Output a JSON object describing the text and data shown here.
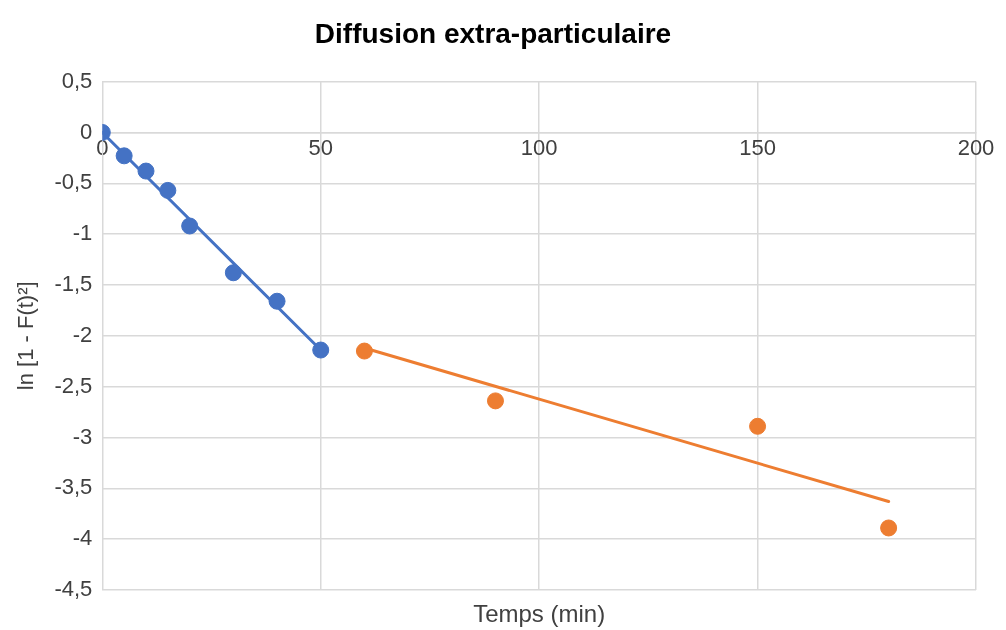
{
  "chart_data": {
    "type": "scatter",
    "title": "Diffusion extra-particulaire",
    "xlabel": "Temps (min)",
    "ylabel": "ln [1 - F(t)²]",
    "series": [
      {
        "type": "scatter",
        "color": "#4472c4",
        "x": [
          0,
          5,
          10,
          15,
          20,
          30,
          40,
          50
        ],
        "values": [
          0,
          -0.23,
          -0.38,
          -0.57,
          -0.92,
          -1.38,
          -1.66,
          -2.14
        ],
        "marker": "circle"
      },
      {
        "type": "line",
        "color": "#4472c4",
        "x": [
          0,
          50
        ],
        "values": [
          0,
          -2.14
        ],
        "marker": "none"
      },
      {
        "type": "scatter",
        "color": "#ed7d31",
        "x": [
          60,
          90,
          150,
          180
        ],
        "values": [
          -2.15,
          -2.64,
          -2.89,
          -3.89
        ],
        "marker": "circle"
      },
      {
        "type": "line",
        "color": "#ed7d31",
        "x": [
          60,
          180
        ],
        "values": [
          -2.12,
          -3.63
        ],
        "marker": "none"
      }
    ],
    "xlim": [
      0,
      200
    ],
    "xticks": [
      0,
      50,
      100,
      150,
      200
    ],
    "ylim": [
      -4.5,
      0.5
    ],
    "yticks": [
      {
        "value": 0.5,
        "label": "0,5"
      },
      0,
      {
        "value": -0.5,
        "label": "-0,5"
      },
      -1,
      {
        "value": -1.5,
        "label": "-1,5"
      },
      -2,
      {
        "value": -2.5,
        "label": "-2,5"
      },
      -3,
      {
        "value": -3.5,
        "label": "-3,5"
      },
      -4,
      {
        "value": -4.5,
        "label": "-4,5"
      }
    ],
    "grid": true,
    "legend": false
  }
}
